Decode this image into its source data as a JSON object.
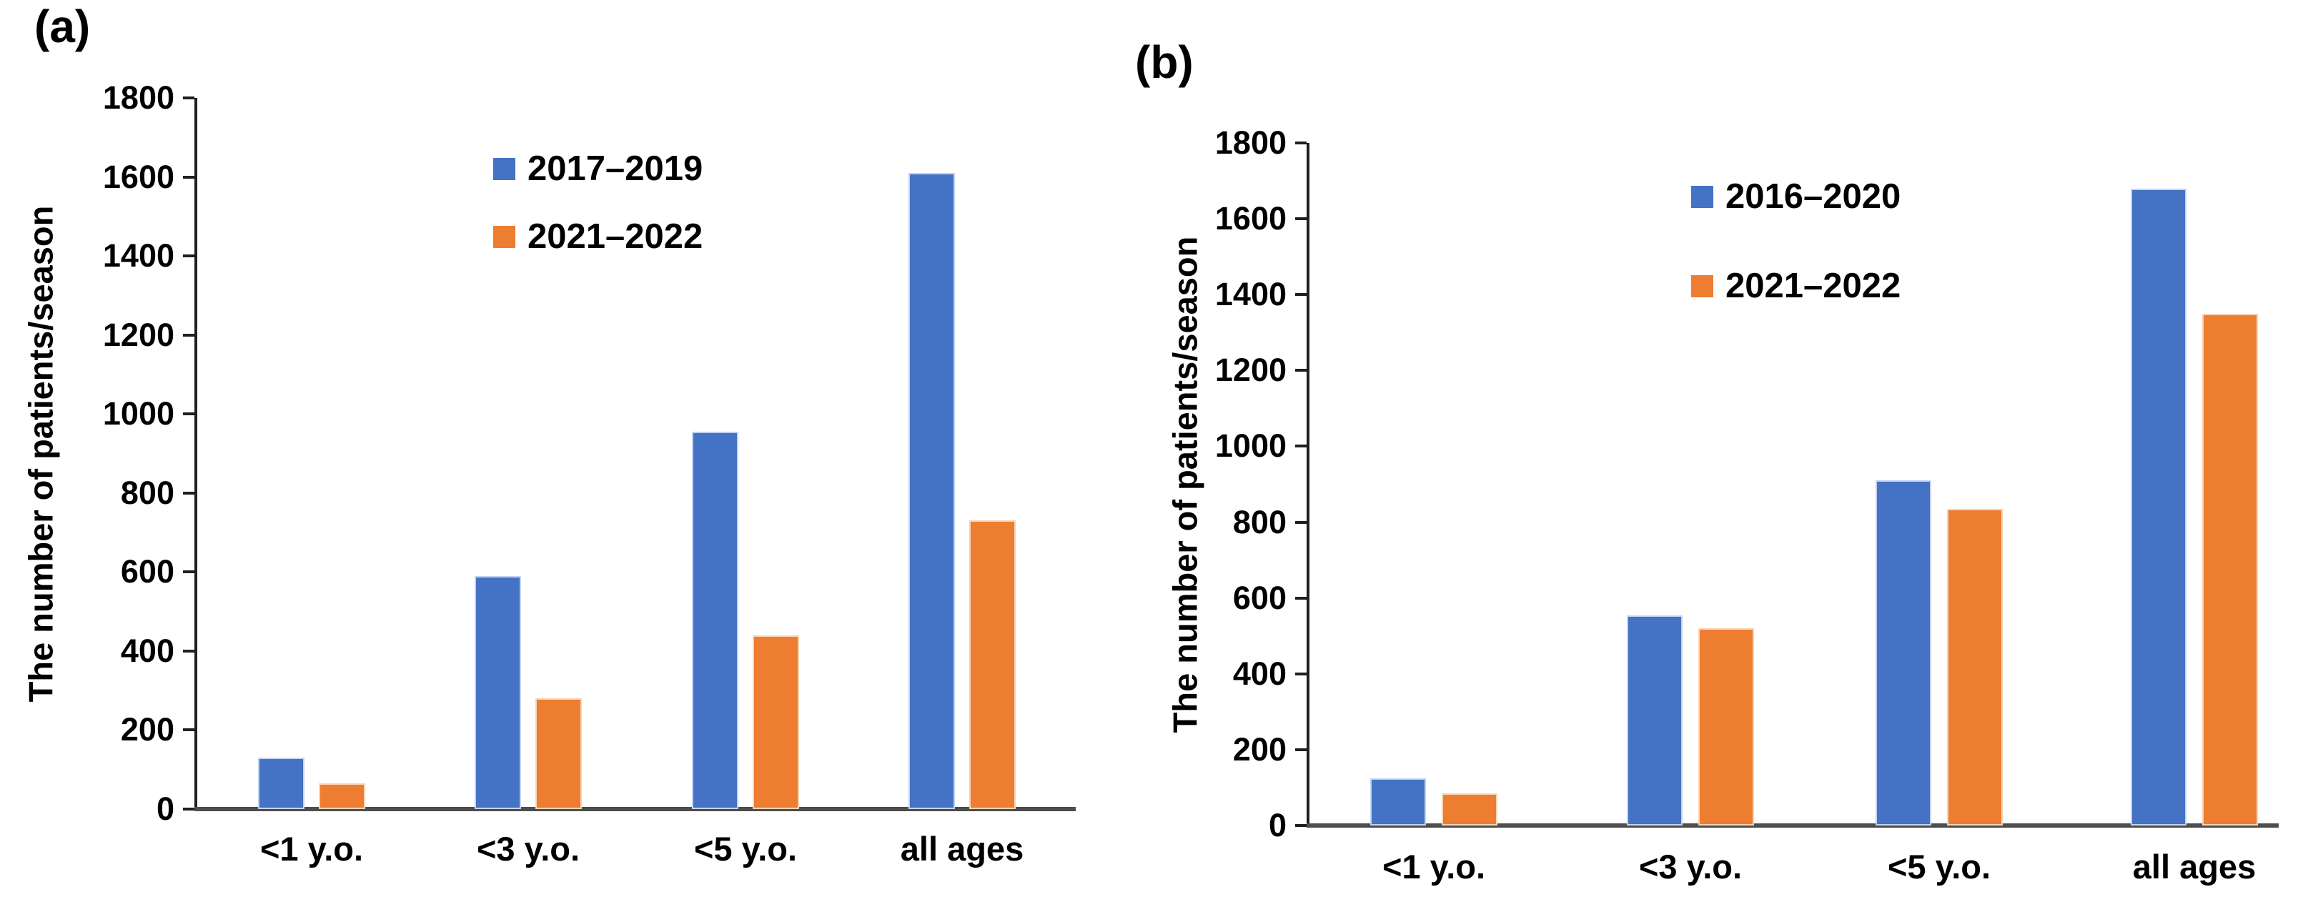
{
  "chart_data": [
    {
      "type": "bar",
      "panel_label": "(a)",
      "ylabel": "The number of patients/season",
      "categories": [
        "<1 y.o.",
        "<3 y.o.",
        "<5 y.o.",
        "all ages"
      ],
      "series": [
        {
          "name": "2017–2019",
          "color": "#4472C4",
          "values": [
            130,
            590,
            955,
            1610
          ]
        },
        {
          "name": "2021–2022",
          "color": "#ED7D31",
          "values": [
            65,
            280,
            440,
            730
          ]
        }
      ],
      "ylim": [
        0,
        1800
      ],
      "y_ticks": [
        0,
        200,
        400,
        600,
        800,
        1000,
        1200,
        1400,
        1600,
        1800
      ],
      "legend_position": "top-center",
      "grid": "off"
    },
    {
      "type": "bar",
      "panel_label": "(b)",
      "ylabel": "The number of patients/season",
      "categories": [
        "<1 y.o.",
        "<3 y.o.",
        "<5 y.o.",
        "all ages"
      ],
      "series": [
        {
          "name": "2016–2020",
          "color": "#4472C4",
          "values": [
            125,
            555,
            910,
            1680
          ]
        },
        {
          "name": "2021–2022",
          "color": "#ED7D31",
          "values": [
            85,
            520,
            835,
            1350
          ]
        }
      ],
      "ylim": [
        0,
        1800
      ],
      "y_ticks": [
        0,
        200,
        400,
        600,
        800,
        1000,
        1200,
        1400,
        1600,
        1800
      ],
      "legend_position": "top-center",
      "grid": "off"
    }
  ]
}
